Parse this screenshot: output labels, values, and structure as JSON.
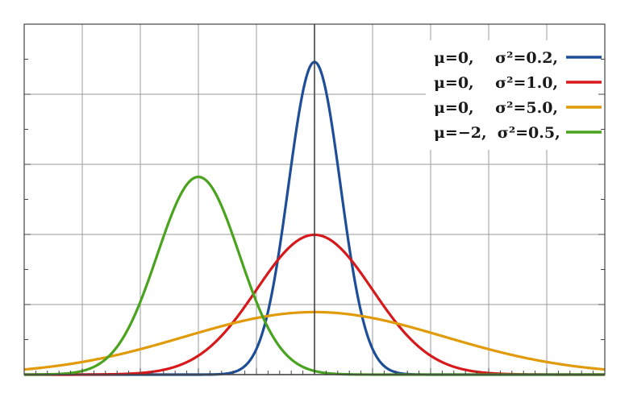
{
  "chart_data": {
    "type": "line",
    "title": "",
    "xlabel": "",
    "ylabel": "",
    "xlim": [
      -5,
      5
    ],
    "ylim": [
      0,
      1.0
    ],
    "grid": true,
    "legend_position": "top-right",
    "series": [
      {
        "name": "μ=0,    σ²=0.2,",
        "mu": 0,
        "sigma2": 0.2,
        "color": "#1f4e99"
      },
      {
        "name": "μ=0,    σ²=1.0,",
        "mu": 0,
        "sigma2": 1.0,
        "color": "#d7191c"
      },
      {
        "name": "μ=0,    σ²=5.0,",
        "mu": 0,
        "sigma2": 5.0,
        "color": "#e09a0a"
      },
      {
        "name": "μ=−2,  σ²=0.5,",
        "mu": -2,
        "sigma2": 0.5,
        "color": "#4aa31f"
      }
    ]
  }
}
